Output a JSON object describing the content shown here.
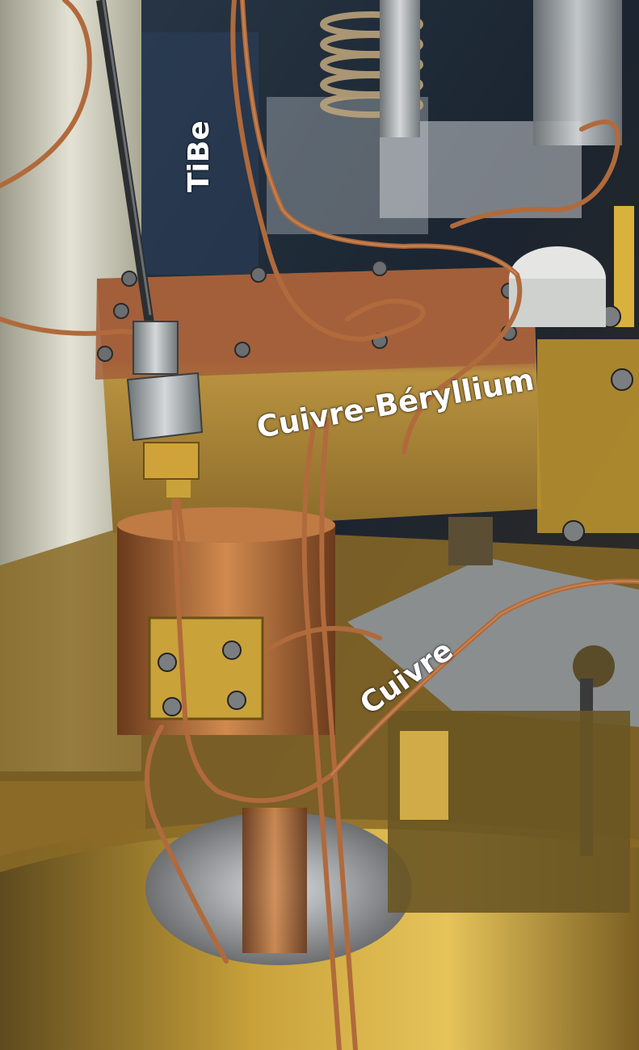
{
  "labels": {
    "tibe": "TiBe",
    "cuivre_beryllium": "Cuivre-Béryllium",
    "cuivre": "Cuivre"
  },
  "colors": {
    "label_text": "#ffffff",
    "gold": "#c9a23a",
    "copper": "#b06a3c",
    "steel": "#9aa0a3",
    "ceramic": "#d8d6c8"
  }
}
